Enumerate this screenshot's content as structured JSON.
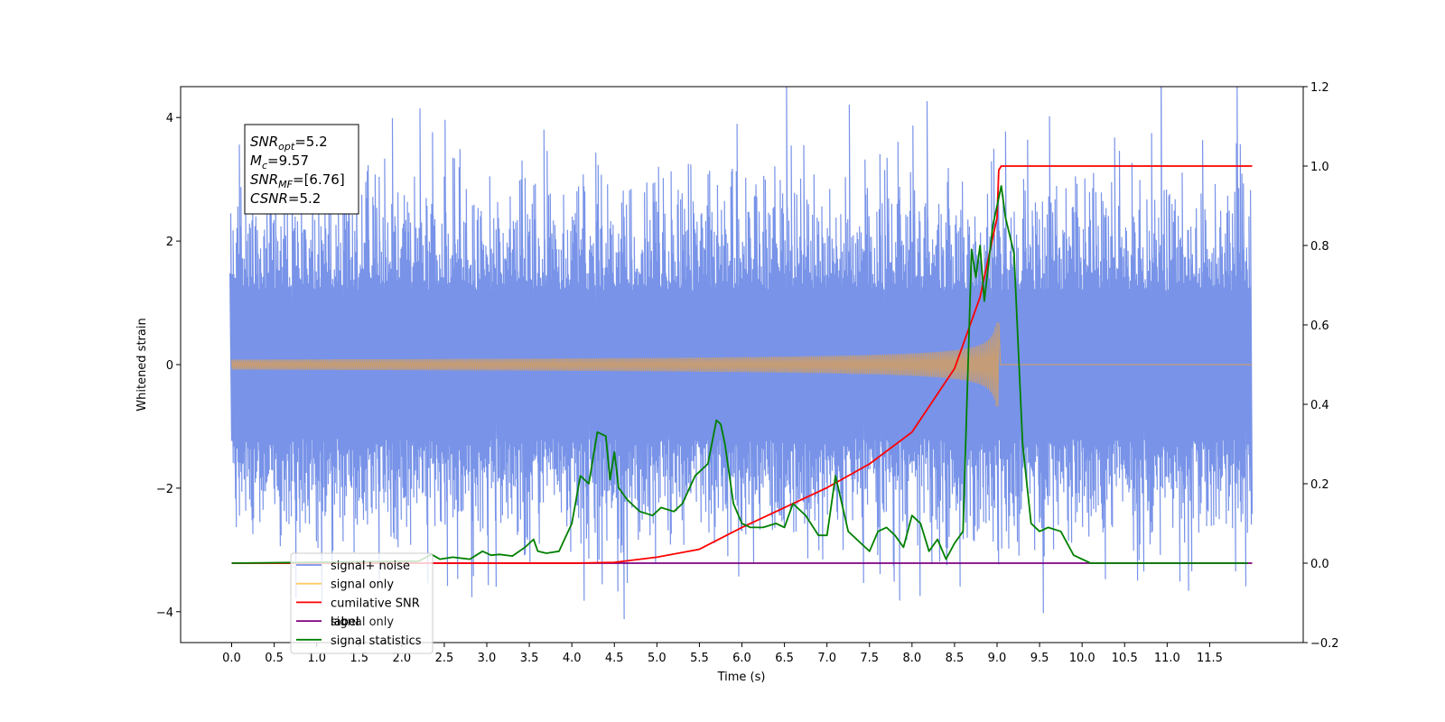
{
  "chart_data": {
    "type": "line",
    "xlabel": "Time (s)",
    "ylabel": "Whitened strain",
    "y2label": "",
    "xlim": [
      -0.6,
      12.6
    ],
    "ylim": [
      -4.5,
      4.5
    ],
    "y2lim": [
      -0.2,
      1.2
    ],
    "xticks": [
      0.0,
      0.5,
      1.0,
      1.5,
      2.0,
      2.5,
      3.0,
      3.5,
      4.0,
      4.5,
      5.0,
      5.5,
      6.0,
      6.5,
      7.0,
      7.5,
      8.0,
      8.5,
      9.0,
      9.5,
      10.0,
      10.5,
      11.0,
      11.5
    ],
    "xtick_labels": [
      "0.0",
      "0.5",
      "1.0",
      "1.5",
      "2.0",
      "2.5",
      "3.0",
      "3.5",
      "4.0",
      "4.5",
      "5.0",
      "5.5",
      "6.0",
      "6.5",
      "7.0",
      "7.5",
      "8.0",
      "8.5",
      "9.0",
      "9.5",
      "10.0",
      "10.5",
      "11.0",
      "11.5"
    ],
    "yticks": [
      -4,
      -2,
      0,
      2,
      4
    ],
    "ytick_labels": [
      "−4",
      "−2",
      "0",
      "2",
      "4"
    ],
    "y2ticks": [
      -0.2,
      0.0,
      0.2,
      0.4,
      0.6,
      0.8,
      1.0,
      1.2
    ],
    "y2tick_labels": [
      "−0.2",
      "0.0",
      "0.2",
      "0.4",
      "0.6",
      "0.8",
      "1.0",
      "1.2"
    ],
    "grid": false,
    "legend_position": "lower-left",
    "annotation": {
      "lines": [
        {
          "main": "SNR",
          "sub": "opt",
          "rest": "=5.2"
        },
        {
          "main": "M",
          "sub": "c",
          "rest": "=9.57"
        },
        {
          "main": "SNR",
          "sub": "MF",
          "rest": "=[6.76]"
        },
        {
          "main": "CSNR",
          "sub": "",
          "rest": "=5.2"
        }
      ]
    },
    "series": [
      {
        "name": "signal+ noise",
        "axis": "left",
        "color": "#7893e8",
        "kind": "noise",
        "t_start": 0.0,
        "t_end": 12.0,
        "sigma": 1.0
      },
      {
        "name": "signal only",
        "axis": "left",
        "color": "#c49d78",
        "legend_color": "#ffc966",
        "kind": "chirp",
        "t_start": 0.0,
        "t_merge": 9.02,
        "peak_amplitude": 0.75
      },
      {
        "name": "cumilative SNR",
        "axis": "right",
        "color": "#ff0000",
        "x": [
          0.0,
          4.0,
          4.5,
          5.0,
          5.5,
          6.0,
          6.5,
          7.0,
          7.5,
          8.0,
          8.5,
          8.8,
          9.0,
          9.02,
          9.05,
          12.0
        ],
        "y": [
          0.0,
          0.0,
          0.002,
          0.015,
          0.035,
          0.09,
          0.14,
          0.19,
          0.25,
          0.33,
          0.49,
          0.67,
          0.87,
          0.99,
          1.0,
          1.0
        ]
      },
      {
        "name": "label",
        "axis": "right",
        "color": "#800080",
        "x": [
          0.0,
          12.0
        ],
        "y": [
          0.0,
          0.0
        ]
      },
      {
        "name": "signal only",
        "axis": "right",
        "color": "#c8c8c8",
        "legend_only": true
      },
      {
        "name": "signal statistics",
        "axis": "right",
        "color": "#008000",
        "x": [
          0.0,
          2.2,
          2.35,
          2.45,
          2.6,
          2.8,
          2.95,
          3.05,
          3.15,
          3.3,
          3.45,
          3.55,
          3.6,
          3.7,
          3.85,
          4.0,
          4.1,
          4.2,
          4.3,
          4.4,
          4.45,
          4.5,
          4.55,
          4.65,
          4.8,
          4.95,
          5.05,
          5.2,
          5.3,
          5.45,
          5.6,
          5.7,
          5.75,
          5.8,
          5.9,
          6.0,
          6.1,
          6.25,
          6.4,
          6.5,
          6.6,
          6.75,
          6.9,
          7.0,
          7.1,
          7.25,
          7.4,
          7.5,
          7.6,
          7.7,
          7.8,
          7.9,
          8.0,
          8.1,
          8.2,
          8.3,
          8.4,
          8.5,
          8.6,
          8.7,
          8.75,
          8.8,
          8.85,
          8.95,
          9.05,
          9.1,
          9.2,
          9.3,
          9.4,
          9.5,
          9.6,
          9.75,
          9.9,
          10.1,
          11.95
        ],
        "y": [
          0.0,
          0.005,
          0.022,
          0.01,
          0.015,
          0.01,
          0.03,
          0.02,
          0.022,
          0.018,
          0.04,
          0.06,
          0.03,
          0.025,
          0.03,
          0.1,
          0.22,
          0.2,
          0.33,
          0.32,
          0.21,
          0.28,
          0.19,
          0.16,
          0.13,
          0.12,
          0.14,
          0.13,
          0.15,
          0.22,
          0.25,
          0.36,
          0.35,
          0.3,
          0.15,
          0.1,
          0.09,
          0.09,
          0.1,
          0.09,
          0.15,
          0.12,
          0.07,
          0.07,
          0.22,
          0.08,
          0.05,
          0.03,
          0.08,
          0.09,
          0.07,
          0.04,
          0.12,
          0.1,
          0.03,
          0.06,
          0.01,
          0.05,
          0.08,
          0.79,
          0.72,
          0.8,
          0.66,
          0.85,
          0.95,
          0.87,
          0.78,
          0.3,
          0.1,
          0.08,
          0.09,
          0.08,
          0.02,
          0.0,
          0.0
        ]
      }
    ]
  }
}
